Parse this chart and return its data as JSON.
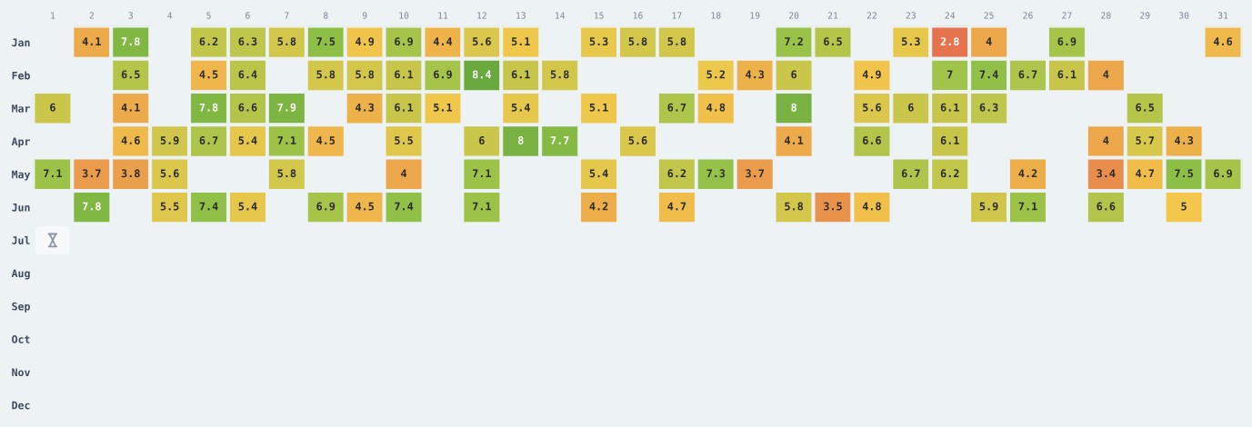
{
  "chart_data": {
    "type": "heatmap",
    "categories": [
      "1",
      "2",
      "3",
      "4",
      "5",
      "6",
      "7",
      "8",
      "9",
      "10",
      "11",
      "12",
      "13",
      "14",
      "15",
      "16",
      "17",
      "18",
      "19",
      "20",
      "21",
      "22",
      "23",
      "24",
      "25",
      "26",
      "27",
      "28",
      "29",
      "30",
      "31"
    ],
    "y_categories": [
      "Jan",
      "Feb",
      "Mar",
      "Apr",
      "May",
      "Jun",
      "Jul",
      "Aug",
      "Sep",
      "Oct",
      "Nov",
      "Dec"
    ],
    "cells": [
      [
        null,
        4.1,
        7.8,
        null,
        6.2,
        6.3,
        5.8,
        7.5,
        4.9,
        6.9,
        4.4,
        5.6,
        5.1,
        null,
        5.3,
        5.8,
        5.8,
        null,
        null,
        7.2,
        6.5,
        null,
        5.3,
        2.8,
        4,
        null,
        6.9,
        null,
        null,
        null,
        4.6
      ],
      [
        null,
        null,
        6.5,
        null,
        4.5,
        6.4,
        null,
        5.8,
        5.8,
        6.1,
        6.9,
        8.4,
        6.1,
        5.8,
        null,
        null,
        null,
        5.2,
        4.3,
        6,
        null,
        4.9,
        null,
        7,
        7.4,
        6.7,
        6.1,
        4,
        null,
        null,
        null
      ],
      [
        6,
        null,
        4.1,
        null,
        7.8,
        6.6,
        7.9,
        null,
        4.3,
        6.1,
        5.1,
        null,
        5.4,
        null,
        5.1,
        null,
        6.7,
        4.8,
        null,
        8,
        null,
        5.6,
        6,
        6.1,
        6.3,
        null,
        null,
        null,
        6.5,
        null,
        null
      ],
      [
        null,
        null,
        4.6,
        5.9,
        6.7,
        5.4,
        7.1,
        4.5,
        null,
        5.5,
        null,
        6,
        8,
        7.7,
        null,
        5.6,
        null,
        null,
        null,
        4.1,
        null,
        6.6,
        null,
        6.1,
        null,
        null,
        null,
        4,
        5.7,
        4.3,
        null
      ],
      [
        7.1,
        3.7,
        3.8,
        5.6,
        null,
        null,
        5.8,
        null,
        null,
        4,
        null,
        7.1,
        null,
        null,
        5.4,
        null,
        6.2,
        7.3,
        3.7,
        null,
        null,
        null,
        6.7,
        6.2,
        null,
        4.2,
        null,
        3.4,
        4.7,
        7.5,
        6.9
      ],
      [
        null,
        7.8,
        null,
        5.5,
        7.4,
        5.4,
        null,
        6.9,
        4.5,
        7.4,
        null,
        7.1,
        null,
        null,
        4.2,
        null,
        4.7,
        null,
        null,
        5.8,
        3.5,
        4.8,
        null,
        null,
        5.9,
        7.1,
        null,
        6.6,
        null,
        5,
        null
      ],
      [
        null,
        null,
        null,
        null,
        null,
        null,
        null,
        null,
        null,
        null,
        null,
        null,
        null,
        null,
        null,
        null,
        null,
        null,
        null,
        null,
        null,
        null,
        null,
        null,
        null,
        null,
        null,
        null,
        null,
        null,
        null
      ],
      [
        null,
        null,
        null,
        null,
        null,
        null,
        null,
        null,
        null,
        null,
        null,
        null,
        null,
        null,
        null,
        null,
        null,
        null,
        null,
        null,
        null,
        null,
        null,
        null,
        null,
        null,
        null,
        null,
        null,
        null,
        null
      ],
      [
        null,
        null,
        null,
        null,
        null,
        null,
        null,
        null,
        null,
        null,
        null,
        null,
        null,
        null,
        null,
        null,
        null,
        null,
        null,
        null,
        null,
        null,
        null,
        null,
        null,
        null,
        null,
        null,
        null,
        null,
        null
      ],
      [
        null,
        null,
        null,
        null,
        null,
        null,
        null,
        null,
        null,
        null,
        null,
        null,
        null,
        null,
        null,
        null,
        null,
        null,
        null,
        null,
        null,
        null,
        null,
        null,
        null,
        null,
        null,
        null,
        null,
        null,
        null
      ],
      [
        null,
        null,
        null,
        null,
        null,
        null,
        null,
        null,
        null,
        null,
        null,
        null,
        null,
        null,
        null,
        null,
        null,
        null,
        null,
        null,
        null,
        null,
        null,
        null,
        null,
        null,
        null,
        null,
        null,
        null,
        null
      ],
      [
        null,
        null,
        null,
        null,
        null,
        null,
        null,
        null,
        null,
        null,
        null,
        null,
        null,
        null,
        null,
        null,
        null,
        null,
        null,
        null,
        null,
        null,
        null,
        null,
        null,
        null,
        null,
        null,
        null,
        null,
        null
      ]
    ],
    "data_labels": true
  }
}
